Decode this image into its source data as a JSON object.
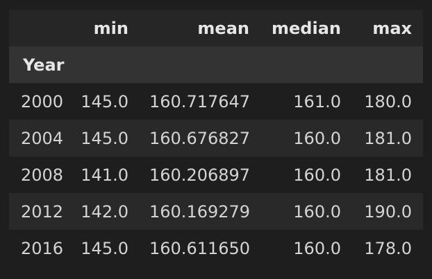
{
  "table": {
    "columns": [
      "",
      "min",
      "mean",
      "median",
      "max"
    ],
    "index_name": "Year",
    "rows": [
      {
        "year": "2000",
        "min": "145.0",
        "mean": "160.717647",
        "median": "161.0",
        "max": "180.0"
      },
      {
        "year": "2004",
        "min": "145.0",
        "mean": "160.676827",
        "median": "160.0",
        "max": "181.0"
      },
      {
        "year": "2008",
        "min": "141.0",
        "mean": "160.206897",
        "median": "160.0",
        "max": "181.0"
      },
      {
        "year": "2012",
        "min": "142.0",
        "mean": "160.169279",
        "median": "160.0",
        "max": "190.0"
      },
      {
        "year": "2016",
        "min": "145.0",
        "mean": "160.611650",
        "median": "160.0",
        "max": "178.0"
      }
    ]
  }
}
